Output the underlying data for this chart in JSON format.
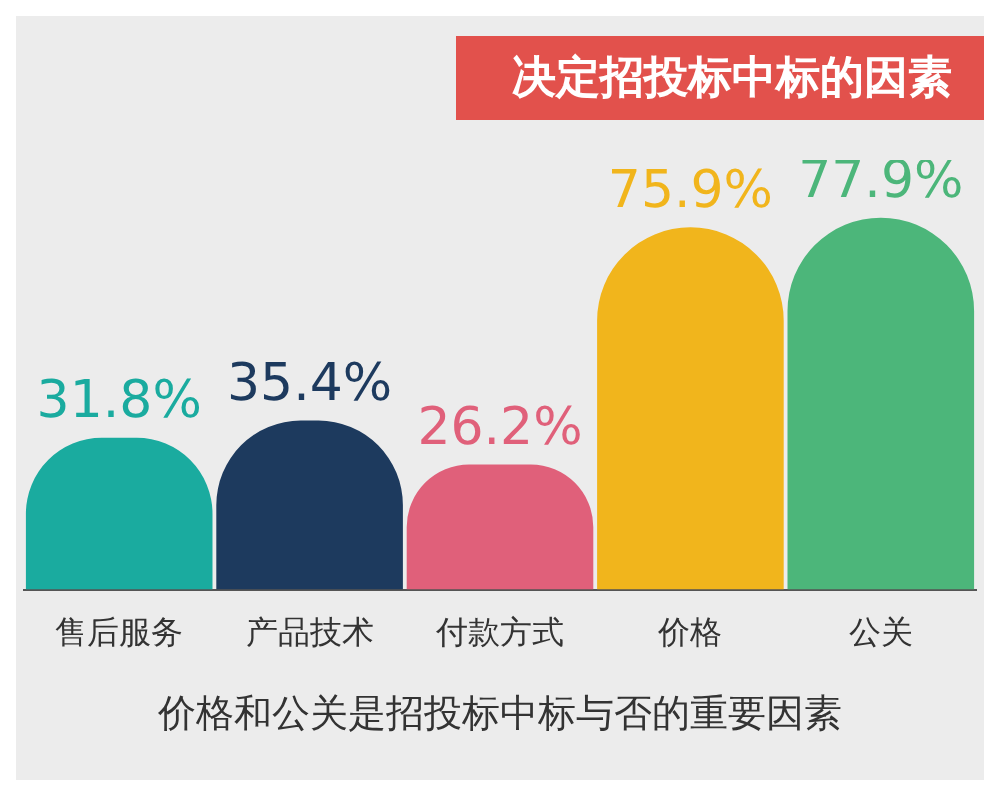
{
  "chart_data": {
    "type": "bar",
    "title": "决定招投标中标的因素",
    "categories": [
      "售后服务",
      "产品技术",
      "付款方式",
      "价格",
      "公关"
    ],
    "values": [
      31.8,
      35.4,
      26.2,
      75.9,
      77.9
    ],
    "value_labels": [
      "31.8%",
      "35.4%",
      "26.2%",
      "75.9%",
      "77.9%"
    ],
    "colors": [
      "#1aab9f",
      "#1d3a5e",
      "#e0607a",
      "#f1b51c",
      "#4cb67a"
    ],
    "annotations": [
      "价格和公关是招投标中标与否的重要因素"
    ],
    "grid": false,
    "legend": false
  }
}
